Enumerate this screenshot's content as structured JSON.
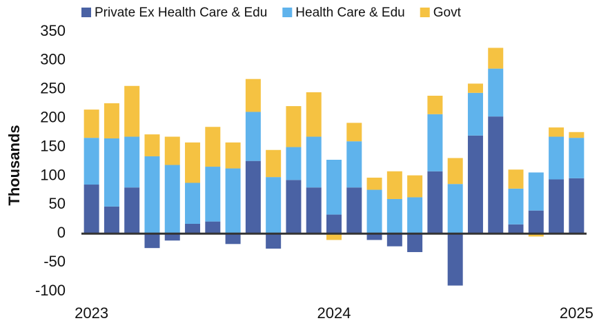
{
  "chart_data": {
    "type": "stacked_bar",
    "y_label": "Thousands",
    "categories": [
      "2023",
      null,
      null,
      null,
      null,
      null,
      null,
      null,
      null,
      null,
      null,
      null,
      "2024",
      null,
      null,
      null,
      null,
      null,
      null,
      null,
      null,
      null,
      null,
      null,
      "2025"
    ],
    "series": [
      {
        "name": "Private Ex Health Care & Edu",
        "color": "#4a62a4",
        "values": [
          85,
          47,
          80,
          -25,
          -12,
          17,
          21,
          -18,
          126,
          -26,
          93,
          80,
          33,
          80,
          -11,
          -22,
          -32,
          108,
          -90,
          170,
          203,
          16,
          40,
          94,
          96
        ]
      },
      {
        "name": "Health Care & Edu",
        "color": "#5fb3ec",
        "values": [
          81,
          118,
          88,
          134,
          119,
          71,
          95,
          113,
          85,
          98,
          57,
          88,
          95,
          80,
          76,
          60,
          63,
          99,
          86,
          74,
          83,
          62,
          66,
          74,
          70
        ]
      },
      {
        "name": "Govt",
        "color": "#f5c242",
        "values": [
          49,
          61,
          88,
          38,
          49,
          70,
          69,
          45,
          57,
          47,
          71,
          77,
          -11,
          32,
          21,
          48,
          38,
          32,
          45,
          16,
          36,
          33,
          -5,
          16,
          10
        ]
      }
    ],
    "ylim": [
      -100,
      350
    ],
    "yticks": [
      -100,
      -50,
      0,
      50,
      100,
      150,
      200,
      250,
      300,
      350
    ],
    "legend": "top"
  }
}
